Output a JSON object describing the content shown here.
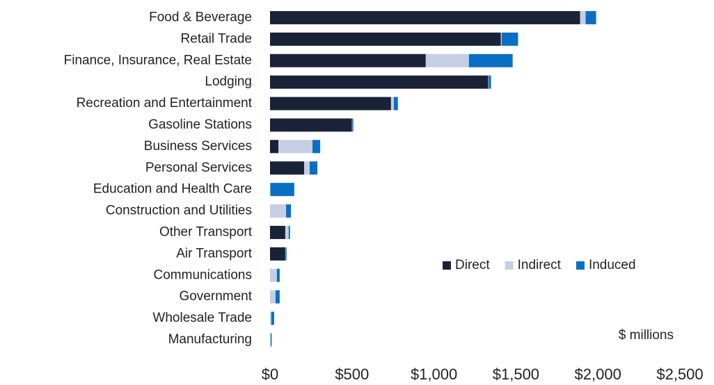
{
  "chart_data": {
    "type": "bar",
    "orientation": "horizontal",
    "stacked": true,
    "categories": [
      "Food & Beverage",
      "Retail Trade",
      "Finance, Insurance, Real Estate",
      "Lodging",
      "Recreation and Entertainment",
      "Gasoline Stations",
      "Business Services",
      "Personal Services",
      "Education and Health Care",
      "Construction and Utilities",
      "Other Transport",
      "Air Transport",
      "Communications",
      "Government",
      "Wholesale Trade",
      "Manufacturing"
    ],
    "series": [
      {
        "name": "Direct",
        "color": "#1a2238",
        "values": [
          1891,
          1408,
          950,
          1331,
          738,
          500,
          51,
          208,
          0,
          0,
          93,
          93,
          0,
          0,
          0,
          0
        ]
      },
      {
        "name": "Indirect",
        "color": "#c5cfe3",
        "values": [
          34,
          5,
          263,
          3,
          17,
          2,
          208,
          34,
          2,
          98,
          21,
          2,
          42,
          34,
          8,
          4
        ]
      },
      {
        "name": "Induced",
        "color": "#0a6fc2",
        "values": [
          64,
          100,
          267,
          14,
          25,
          6,
          47,
          47,
          146,
          30,
          8,
          6,
          17,
          25,
          17,
          6
        ]
      }
    ],
    "xlim": [
      0,
      2500
    ],
    "xticks": [
      {
        "value": 0,
        "label": "$0"
      },
      {
        "value": 500,
        "label": "$500"
      },
      {
        "value": 1000,
        "label": "$1,000"
      },
      {
        "value": 1500,
        "label": "$1,500"
      },
      {
        "value": 2000,
        "label": "$2,000"
      },
      {
        "value": 2500,
        "label": "$2,500"
      }
    ],
    "annotation": "$ millions",
    "legend": "lower right"
  }
}
